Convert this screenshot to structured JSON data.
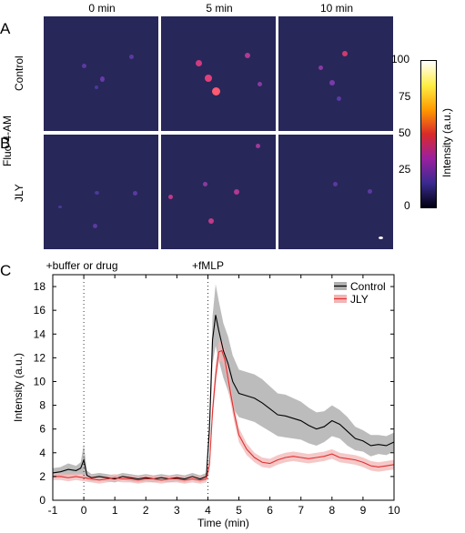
{
  "panels": {
    "a_letter": "A",
    "b_letter": "B",
    "c_letter": "C",
    "columns": [
      "0 min",
      "5 min",
      "10 min"
    ],
    "rows": [
      "Control",
      "JLY"
    ],
    "side_label": "Fluo-4-AM"
  },
  "colorbar": {
    "label": "Intensity (a.u.)",
    "ticks": [
      "100",
      "75",
      "50",
      "25",
      "0"
    ],
    "colors": [
      "#ffffff",
      "#ffee44",
      "#ff9a00",
      "#d92a2a",
      "#9a20a0",
      "#3a2a90",
      "#000010"
    ]
  },
  "microscopy": {
    "background_color": "#27275a",
    "cell_colors": [
      "#6a3aa8",
      "#b03a90",
      "#e0407a",
      "#ff5a70"
    ]
  },
  "chart_data": {
    "type": "line",
    "xlabel": "Time (min)",
    "ylabel": "Intensity (a.u.)",
    "xlim": [
      -1,
      10
    ],
    "ylim": [
      0,
      19
    ],
    "xticks": [
      -1,
      0,
      1,
      2,
      3,
      4,
      5,
      6,
      7,
      8,
      9,
      10
    ],
    "yticks": [
      0,
      2,
      4,
      6,
      8,
      10,
      12,
      14,
      16,
      18
    ],
    "grid": false,
    "legend_position": "top-right",
    "annotations": [
      {
        "text": "+buffer or drug",
        "x": 0
      },
      {
        "text": "+fMLP",
        "x": 4
      }
    ],
    "series": [
      {
        "name": "Control",
        "color": "#000000",
        "band_color": "#b0b0b0",
        "x": [
          -1,
          -0.75,
          -0.5,
          -0.25,
          -0.1,
          0,
          0.1,
          0.25,
          0.5,
          0.75,
          1,
          1.25,
          1.5,
          1.75,
          2,
          2.25,
          2.5,
          2.75,
          3,
          3.25,
          3.5,
          3.75,
          3.95,
          4.05,
          4.15,
          4.25,
          4.35,
          4.5,
          4.65,
          4.8,
          5,
          5.25,
          5.5,
          5.75,
          6,
          6.25,
          6.5,
          6.75,
          7,
          7.25,
          7.5,
          7.75,
          8,
          8.25,
          8.5,
          8.75,
          9,
          9.25,
          9.5,
          9.75,
          10
        ],
        "values": [
          2.3,
          2.4,
          2.6,
          2.5,
          2.7,
          3.4,
          2.1,
          1.9,
          2.0,
          1.9,
          1.8,
          2.0,
          1.9,
          1.8,
          1.9,
          1.8,
          1.9,
          1.8,
          1.9,
          1.8,
          2.0,
          1.8,
          2.0,
          6.0,
          13.5,
          15.6,
          14.3,
          12.6,
          11.5,
          10.0,
          9.0,
          8.8,
          8.6,
          8.2,
          7.7,
          7.2,
          7.1,
          6.9,
          6.7,
          6.3,
          6.0,
          6.2,
          6.7,
          6.4,
          5.8,
          5.2,
          5.0,
          4.6,
          4.7,
          4.6,
          4.9
        ],
        "band": [
          0.4,
          0.4,
          0.5,
          0.4,
          0.5,
          1.3,
          0.4,
          0.3,
          0.3,
          0.3,
          0.3,
          0.3,
          0.3,
          0.3,
          0.3,
          0.3,
          0.3,
          0.3,
          0.3,
          0.3,
          0.3,
          0.3,
          0.3,
          1.0,
          2.0,
          2.6,
          2.5,
          2.3,
          2.3,
          2.2,
          2.0,
          2.0,
          2.0,
          2.0,
          1.9,
          1.8,
          1.8,
          1.7,
          1.6,
          1.5,
          1.4,
          1.3,
          1.3,
          1.2,
          1.2,
          1.0,
          0.9,
          0.9,
          0.8,
          0.8,
          0.8
        ]
      },
      {
        "name": "JLY",
        "color": "#e03030",
        "band_color": "#f2b5b5",
        "x": [
          -1,
          -0.75,
          -0.5,
          -0.25,
          0,
          0.25,
          0.5,
          0.75,
          1,
          1.25,
          1.5,
          1.75,
          2,
          2.25,
          2.5,
          2.75,
          3,
          3.25,
          3.5,
          3.75,
          3.95,
          4.05,
          4.15,
          4.25,
          4.35,
          4.45,
          4.55,
          4.7,
          4.85,
          5,
          5.25,
          5.5,
          5.75,
          6,
          6.25,
          6.5,
          6.75,
          7,
          7.25,
          7.5,
          7.75,
          8,
          8.25,
          8.5,
          8.75,
          9,
          9.25,
          9.5,
          9.75,
          10
        ],
        "values": [
          2.0,
          2.0,
          1.9,
          2.0,
          1.9,
          1.8,
          1.7,
          1.8,
          1.9,
          1.8,
          1.8,
          1.7,
          1.8,
          1.8,
          1.7,
          1.8,
          1.8,
          1.7,
          1.8,
          1.7,
          1.8,
          3.0,
          7.5,
          10.5,
          12.5,
          12.6,
          11.8,
          9.5,
          7.3,
          5.5,
          4.3,
          3.6,
          3.2,
          3.1,
          3.4,
          3.6,
          3.7,
          3.6,
          3.5,
          3.6,
          3.7,
          3.9,
          3.6,
          3.5,
          3.4,
          3.2,
          2.9,
          2.8,
          2.9,
          3.0
        ],
        "band": [
          0.3,
          0.3,
          0.3,
          0.3,
          0.3,
          0.3,
          0.3,
          0.3,
          0.3,
          0.3,
          0.3,
          0.3,
          0.3,
          0.3,
          0.3,
          0.3,
          0.3,
          0.3,
          0.3,
          0.3,
          0.3,
          0.5,
          0.8,
          0.9,
          0.9,
          0.9,
          0.9,
          0.8,
          0.7,
          0.6,
          0.5,
          0.4,
          0.4,
          0.4,
          0.4,
          0.4,
          0.4,
          0.4,
          0.4,
          0.4,
          0.4,
          0.4,
          0.4,
          0.4,
          0.4,
          0.4,
          0.4,
          0.4,
          0.4,
          0.4
        ]
      }
    ]
  }
}
